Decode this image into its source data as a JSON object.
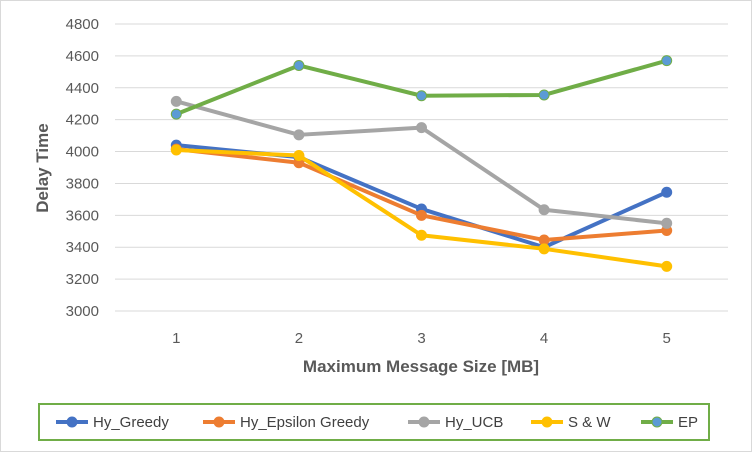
{
  "chart_data": {
    "type": "line",
    "xlabel": "Maximum Message Size [MB]",
    "ylabel": "Delay Time",
    "x": [
      1,
      2,
      3,
      4,
      5
    ],
    "x_ticks": [
      "1",
      "2",
      "3",
      "4",
      "5"
    ],
    "ylim": [
      3000,
      4800
    ],
    "y_ticks": [
      "3000",
      "3200",
      "3400",
      "3600",
      "3800",
      "4000",
      "4200",
      "4400",
      "4600",
      "4800"
    ],
    "grid": true,
    "legend_position": "bottom",
    "series": [
      {
        "name": "Hy_Greedy",
        "color": "#4472C4",
        "values": [
          4040,
          3965,
          3640,
          3400,
          3745
        ]
      },
      {
        "name": "Hy_Epsilon Greedy",
        "color": "#ED7D31",
        "values": [
          4015,
          3930,
          3600,
          3445,
          3505
        ]
      },
      {
        "name": "Hy_UCB",
        "color": "#A5A5A5",
        "values": [
          4315,
          4105,
          4150,
          3635,
          3550
        ]
      },
      {
        "name": "S & W",
        "color": "#FFC000",
        "values": [
          4010,
          3975,
          3475,
          3390,
          3280
        ]
      },
      {
        "name": "EP",
        "color": "#70AD47",
        "marker_color": "#5B9BD5",
        "values": [
          4235,
          4540,
          4350,
          4355,
          4570
        ]
      }
    ]
  }
}
